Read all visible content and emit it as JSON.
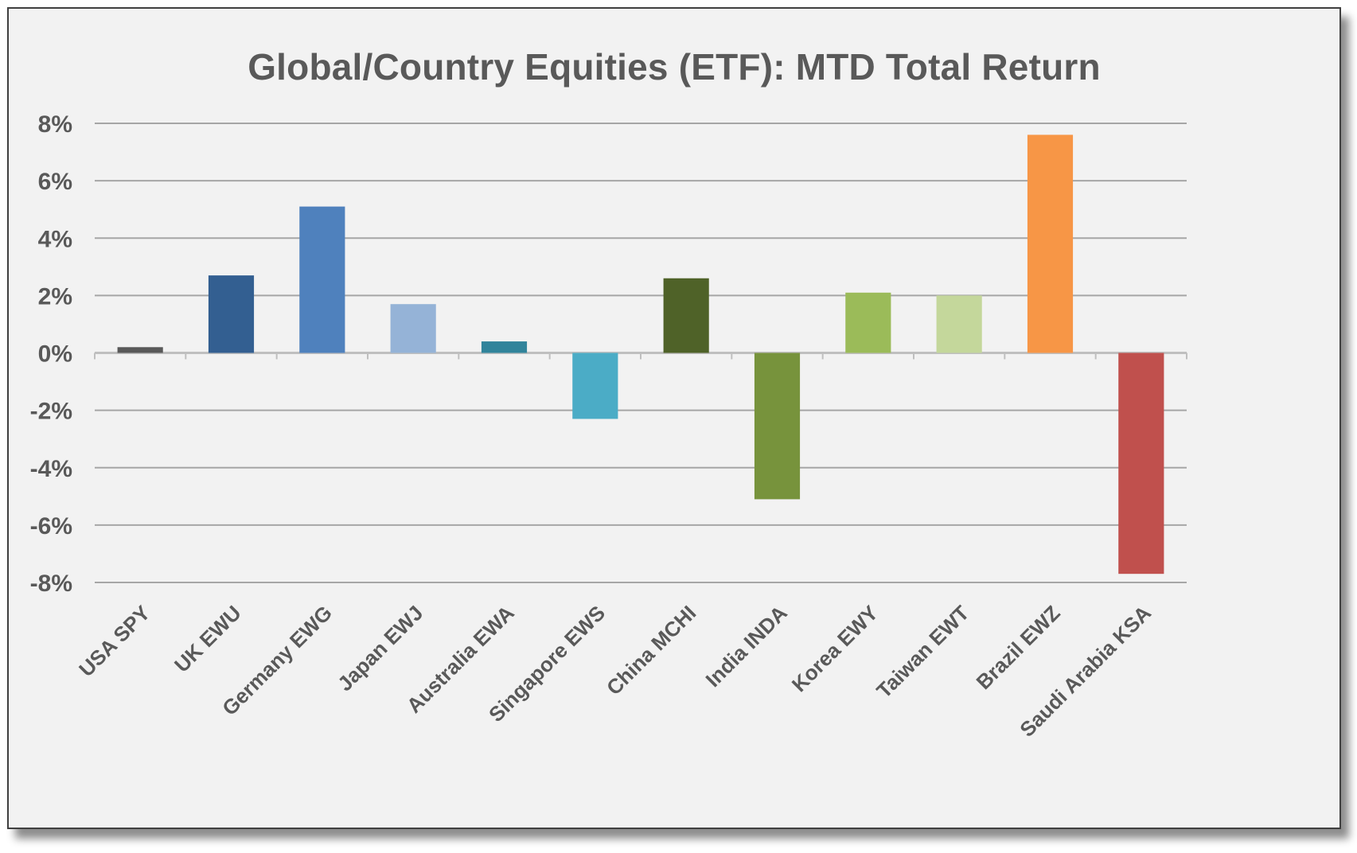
{
  "chart_data": {
    "type": "bar",
    "title": "Global/Country Equities (ETF): MTD Total Return",
    "xlabel": "",
    "ylabel": "",
    "ylim": [
      -8,
      8
    ],
    "yticks": [
      8,
      6,
      4,
      2,
      0,
      -2,
      -4,
      -6,
      -8
    ],
    "ytick_labels": [
      "8%",
      "6%",
      "4%",
      "2%",
      "0%",
      "-2%",
      "-4%",
      "-6%",
      "-8%"
    ],
    "grid": true,
    "legend": "none",
    "categories": [
      "USA SPY",
      "UK EWU",
      "Germany EWG",
      "Japan EWJ",
      "Australia EWA",
      "Singapore EWS",
      "China MCHI",
      "India INDA",
      "Korea EWY",
      "Taiwan EWT",
      "Brazil EWZ",
      "Saudi Arabia KSA"
    ],
    "values": [
      0.2,
      2.7,
      5.1,
      1.7,
      0.4,
      -2.3,
      2.6,
      -5.1,
      2.1,
      2.0,
      7.6,
      -7.7
    ],
    "colors": [
      "#595959",
      "#335f91",
      "#4f81bd",
      "#95b3d7",
      "#31849b",
      "#4bacc6",
      "#4f6228",
      "#77933c",
      "#9bbb59",
      "#c4d79b",
      "#f79646",
      "#c0504d"
    ],
    "background": "#f2f2f2",
    "gridline_color": "#a6a6a6",
    "text_color": "#595959"
  }
}
